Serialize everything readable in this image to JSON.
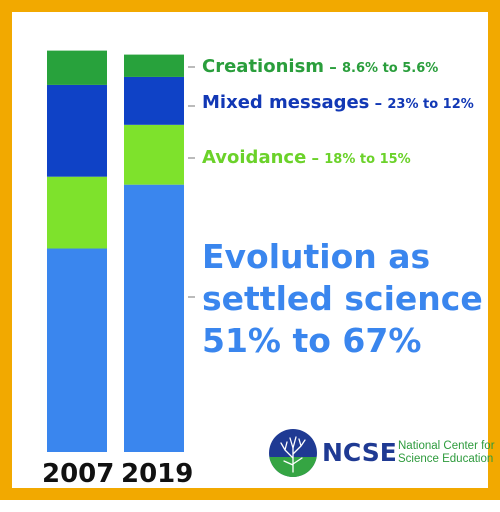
{
  "chart_data": {
    "type": "bar",
    "stacked": true,
    "categories": [
      "2007",
      "2019"
    ],
    "series": [
      {
        "name": "Evolution as settled science",
        "values": [
          51,
          67
        ],
        "color": "#3a86ee"
      },
      {
        "name": "Avoidance",
        "values": [
          18,
          15
        ],
        "color": "#7ee22c"
      },
      {
        "name": "Mixed messages",
        "values": [
          23,
          12
        ],
        "color": "#0f42c6"
      },
      {
        "name": "Creationism",
        "values": [
          8.6,
          5.6
        ],
        "color": "#28a23c"
      }
    ],
    "ylim": [
      0,
      100
    ],
    "title": "",
    "xlabel": "",
    "ylabel": ""
  },
  "labels": {
    "creationism": {
      "name": "Creationism",
      "sep": " – ",
      "range": "8.6% to 5.6%",
      "color": "#2a9e3c"
    },
    "mixed": {
      "name": "Mixed messages",
      "sep": " – ",
      "range": "23% to 12%",
      "color": "#1238b5"
    },
    "avoidance": {
      "name": "Avoidance",
      "sep": " – ",
      "range": "18% to 15%",
      "color": "#6bd22a"
    },
    "headline": {
      "line1": "Evolution as",
      "line2": "settled science",
      "line3": "51% to 67%",
      "color": "#3a86ee"
    }
  },
  "logo": {
    "abbr": "NCSE",
    "full_line1": "National Center for",
    "full_line2": "Science Education",
    "icon": "tree-of-life-icon"
  },
  "colors": {
    "frame": "#f2a900"
  }
}
